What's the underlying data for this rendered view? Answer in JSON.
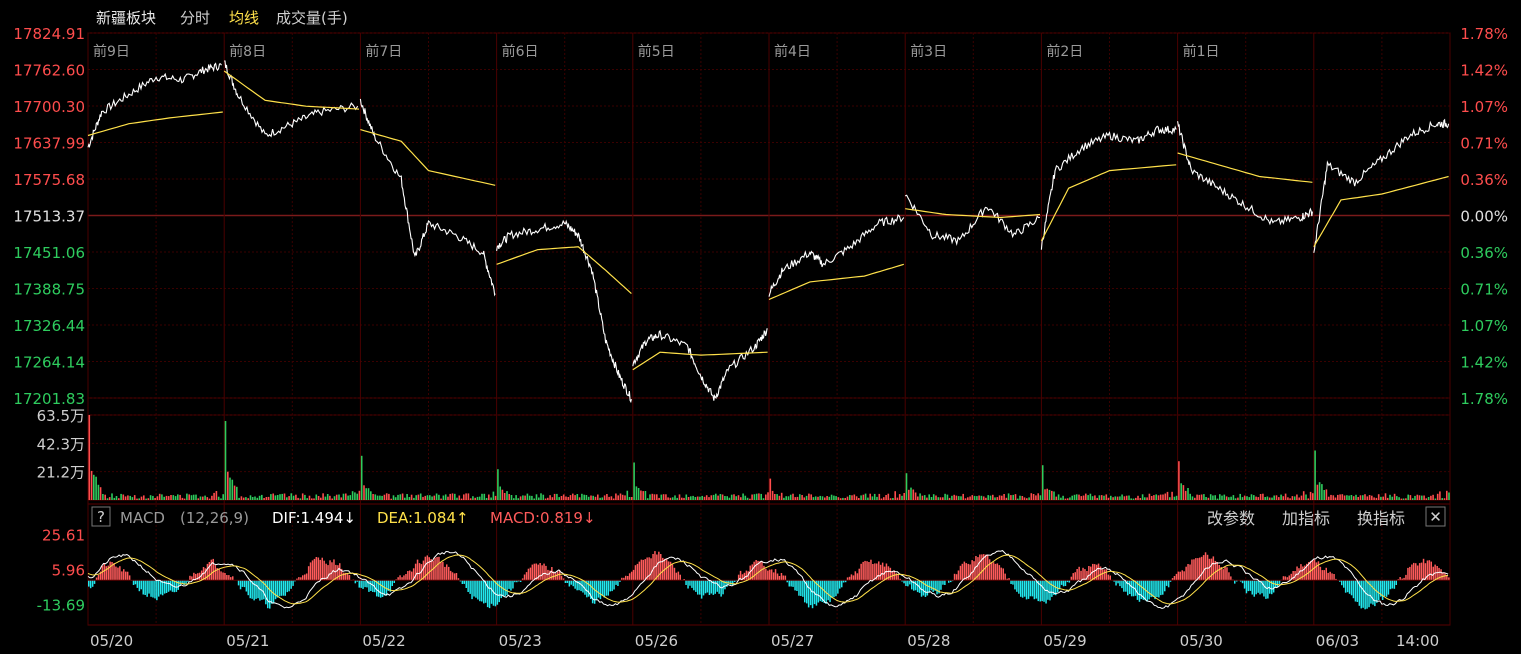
{
  "header": {
    "sector": "新疆板块",
    "mode": "分时",
    "avg_line": "均线",
    "volume_unit": "成交量(手)"
  },
  "macd_panel": {
    "help": "?",
    "name": "MACD",
    "params": "(12,26,9)",
    "dif": "DIF:1.494↓",
    "dea": "DEA:1.084↑",
    "macd": "MACD:0.819↓",
    "buttons": [
      "改参数",
      "加指标",
      "换指标"
    ],
    "close": "✕"
  },
  "chart_data": {
    "type": "line",
    "price_axis": {
      "labels": [
        "17824.91",
        "17762.60",
        "17700.30",
        "17637.99",
        "17575.68",
        "17513.37",
        "17451.06",
        "17388.75",
        "17326.44",
        "17264.14",
        "17201.83"
      ],
      "ylim": [
        17201.83,
        17824.91
      ],
      "base": 17513.37
    },
    "percent_axis": {
      "labels": [
        "1.78%",
        "1.42%",
        "1.07%",
        "0.71%",
        "0.36%",
        "0.00%",
        "0.36%",
        "0.71%",
        "1.07%",
        "1.42%",
        "1.78%"
      ]
    },
    "day_labels": [
      "前9日",
      "前8日",
      "前7日",
      "前6日",
      "前5日",
      "前4日",
      "前3日",
      "前2日",
      "前1日"
    ],
    "dates": [
      "05/20",
      "05/21",
      "05/22",
      "05/23",
      "05/26",
      "05/27",
      "05/28",
      "05/29",
      "05/30",
      "06/03",
      "14:00"
    ],
    "volume_axis": {
      "labels": [
        "63.5万",
        "42.3万",
        "21.2万"
      ],
      "ylim": [
        0,
        63.5
      ]
    },
    "macd_axis": {
      "labels": [
        "25.61",
        "5.96",
        "-13.69"
      ],
      "ylim": [
        -25,
        28
      ]
    },
    "series": [
      {
        "name": "分时",
        "color": "#ffffff",
        "points": [
          [
            0,
            17630
          ],
          [
            0.1,
            17690
          ],
          [
            0.3,
            17720
          ],
          [
            0.5,
            17750
          ],
          [
            0.7,
            17745
          ],
          [
            0.85,
            17762
          ],
          [
            0.98,
            17770
          ],
          [
            1,
            17775
          ],
          [
            1.1,
            17720
          ],
          [
            1.3,
            17650
          ],
          [
            1.5,
            17670
          ],
          [
            1.7,
            17690
          ],
          [
            1.98,
            17700
          ],
          [
            2,
            17710
          ],
          [
            2.1,
            17650
          ],
          [
            2.3,
            17575
          ],
          [
            2.4,
            17440
          ],
          [
            2.5,
            17500
          ],
          [
            2.7,
            17480
          ],
          [
            2.9,
            17450
          ],
          [
            2.99,
            17380
          ],
          [
            3,
            17460
          ],
          [
            3.1,
            17480
          ],
          [
            3.3,
            17490
          ],
          [
            3.5,
            17500
          ],
          [
            3.6,
            17480
          ],
          [
            3.7,
            17420
          ],
          [
            3.8,
            17300
          ],
          [
            3.9,
            17240
          ],
          [
            3.99,
            17200
          ],
          [
            4,
            17260
          ],
          [
            4.1,
            17300
          ],
          [
            4.2,
            17310
          ],
          [
            4.4,
            17290
          ],
          [
            4.5,
            17240
          ],
          [
            4.6,
            17200
          ],
          [
            4.7,
            17250
          ],
          [
            4.9,
            17290
          ],
          [
            4.99,
            17320
          ],
          [
            5,
            17380
          ],
          [
            5.1,
            17420
          ],
          [
            5.3,
            17450
          ],
          [
            5.4,
            17430
          ],
          [
            5.6,
            17460
          ],
          [
            5.8,
            17500
          ],
          [
            5.99,
            17510
          ],
          [
            6,
            17550
          ],
          [
            6.2,
            17480
          ],
          [
            6.4,
            17470
          ],
          [
            6.6,
            17530
          ],
          [
            6.8,
            17480
          ],
          [
            6.99,
            17510
          ],
          [
            7,
            17460
          ],
          [
            7.1,
            17590
          ],
          [
            7.3,
            17630
          ],
          [
            7.5,
            17650
          ],
          [
            7.7,
            17640
          ],
          [
            7.85,
            17660
          ],
          [
            7.99,
            17660
          ],
          [
            8,
            17670
          ],
          [
            8.1,
            17590
          ],
          [
            8.3,
            17560
          ],
          [
            8.5,
            17530
          ],
          [
            8.7,
            17500
          ],
          [
            8.9,
            17510
          ],
          [
            8.99,
            17520
          ],
          [
            9,
            17450
          ],
          [
            9.1,
            17600
          ],
          [
            9.3,
            17570
          ],
          [
            9.5,
            17610
          ],
          [
            9.7,
            17650
          ],
          [
            9.9,
            17670
          ],
          [
            9.99,
            17670
          ]
        ]
      },
      {
        "name": "均线",
        "color": "#ffe14a",
        "points": [
          [
            0,
            17650
          ],
          [
            0.3,
            17670
          ],
          [
            0.6,
            17680
          ],
          [
            0.99,
            17690
          ],
          [
            1,
            17760
          ],
          [
            1.3,
            17710
          ],
          [
            1.6,
            17700
          ],
          [
            1.99,
            17695
          ],
          [
            2,
            17660
          ],
          [
            2.3,
            17640
          ],
          [
            2.5,
            17590
          ],
          [
            2.99,
            17565
          ],
          [
            3,
            17430
          ],
          [
            3.3,
            17455
          ],
          [
            3.6,
            17460
          ],
          [
            3.8,
            17420
          ],
          [
            3.99,
            17380
          ],
          [
            4,
            17250
          ],
          [
            4.2,
            17280
          ],
          [
            4.5,
            17275
          ],
          [
            4.99,
            17280
          ],
          [
            5,
            17370
          ],
          [
            5.3,
            17400
          ],
          [
            5.7,
            17410
          ],
          [
            5.99,
            17430
          ],
          [
            6,
            17525
          ],
          [
            6.3,
            17515
          ],
          [
            6.7,
            17510
          ],
          [
            6.99,
            17515
          ],
          [
            7,
            17470
          ],
          [
            7.2,
            17560
          ],
          [
            7.5,
            17590
          ],
          [
            7.99,
            17600
          ],
          [
            8,
            17620
          ],
          [
            8.3,
            17600
          ],
          [
            8.6,
            17580
          ],
          [
            8.99,
            17570
          ],
          [
            9,
            17460
          ],
          [
            9.2,
            17540
          ],
          [
            9.5,
            17550
          ],
          [
            9.99,
            17580
          ]
        ]
      }
    ],
    "volume_bars_peaks": [
      63.5,
      59.0,
      33.0,
      23.0,
      28.0,
      16.0,
      20.0,
      26.0,
      29.0,
      37.0
    ],
    "macd_colors": {
      "up": "#ff5b5b",
      "down": "#22e8ee",
      "dif": "#ffffff",
      "dea": "#ffe14a"
    },
    "colors": {
      "up": "#ff4d4d",
      "down": "#2ecc5e",
      "neutral": "#e0e0e0",
      "grid": "#3a0000"
    }
  }
}
